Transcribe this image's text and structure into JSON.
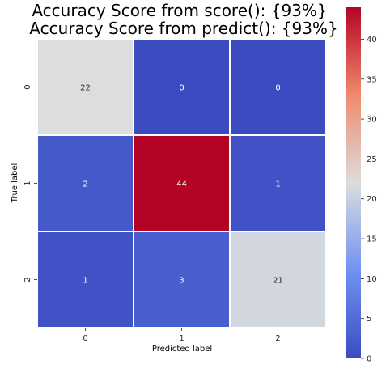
{
  "chart_data": {
    "type": "heatmap",
    "title_lines": [
      "Accuracy Score from score(): {93%}",
      "Accuracy Score from predict(): {93%}"
    ],
    "xlabel": "Predicted label",
    "ylabel": "True label",
    "x_categories": [
      "0",
      "1",
      "2"
    ],
    "y_categories": [
      "0",
      "1",
      "2"
    ],
    "values": [
      [
        22,
        0,
        0
      ],
      [
        2,
        44,
        1
      ],
      [
        1,
        3,
        21
      ]
    ],
    "colormap": "coolwarm",
    "vmin": 0,
    "vmax": 44,
    "colorbar_ticks": [
      "0",
      "5",
      "10",
      "15",
      "20",
      "25",
      "30",
      "35",
      "40"
    ],
    "gridline_color": "#ffffff"
  }
}
